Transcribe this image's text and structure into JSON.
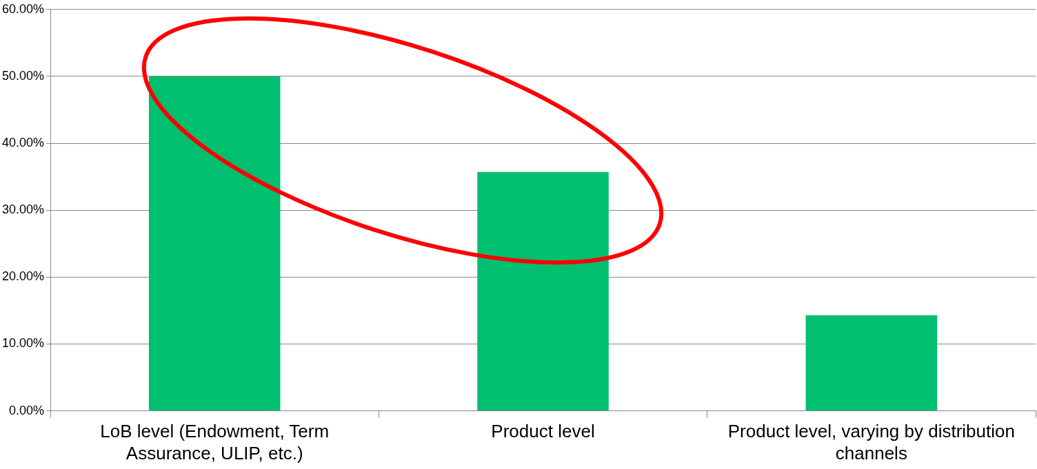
{
  "chart_data": {
    "type": "bar",
    "categories": [
      "LoB level (Endowment, Term Assurance, ULIP, etc.)",
      "Product level",
      "Product level, varying by distribution channels"
    ],
    "values": [
      50,
      35.7,
      14.3
    ],
    "color": "#00bf6f",
    "ylim": [
      0,
      60
    ],
    "yticks": [
      {
        "value": 0,
        "label": "0.00%"
      },
      {
        "value": 10,
        "label": "10.00%"
      },
      {
        "value": 20,
        "label": "20.00%"
      },
      {
        "value": 30,
        "label": "30.00%"
      },
      {
        "value": 40,
        "label": "40.00%"
      },
      {
        "value": 50,
        "label": "50.00%"
      },
      {
        "value": 60,
        "label": "60.00%"
      }
    ],
    "grid": "y",
    "legend": false
  }
}
